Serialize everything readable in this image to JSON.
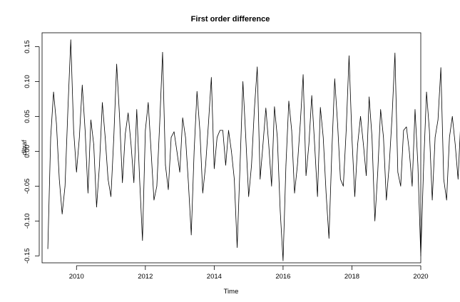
{
  "chart_data": {
    "type": "line",
    "title": "First order difference",
    "xlabel": "Time",
    "ylabel": "dltraf",
    "xlim": [
      2009.0,
      2020.0
    ],
    "ylim": [
      -0.16,
      0.17
    ],
    "x_ticks": [
      2010,
      2012,
      2014,
      2016,
      2018,
      2020
    ],
    "y_ticks": [
      -0.15,
      -0.1,
      -0.05,
      0.0,
      0.05,
      0.1,
      0.15
    ],
    "y_tick_labels": [
      "-0.15",
      "-0.10",
      "-0.05",
      "0.00",
      "0.05",
      "0.10",
      "0.15"
    ],
    "grid": false,
    "series": [
      {
        "x_start": 2009.1667,
        "x_step": 0.0833333,
        "line_color": "#000000",
        "values": [
          -0.14,
          0.02,
          0.085,
          0.04,
          -0.04,
          -0.09,
          -0.05,
          0.06,
          0.16,
          0.03,
          -0.03,
          0.02,
          0.095,
          0.03,
          -0.06,
          0.045,
          0.01,
          -0.08,
          -0.02,
          0.07,
          0.02,
          -0.04,
          -0.065,
          0.02,
          0.125,
          0.05,
          -0.045,
          0.025,
          0.055,
          0.01,
          -0.045,
          0.06,
          -0.04,
          -0.128,
          0.03,
          0.07,
          0.0,
          -0.07,
          -0.05,
          0.04,
          0.142,
          -0.02,
          -0.055,
          0.02,
          0.028,
          0.0,
          -0.03,
          0.048,
          0.02,
          -0.045,
          -0.12,
          0.0,
          0.086,
          0.03,
          -0.06,
          -0.02,
          0.04,
          0.106,
          -0.025,
          0.02,
          0.03,
          0.03,
          -0.02,
          0.03,
          0.0,
          -0.04,
          -0.138,
          -0.02,
          0.1,
          0.02,
          -0.065,
          -0.02,
          0.06,
          0.121,
          -0.04,
          0.01,
          0.062,
          0.01,
          -0.05,
          0.064,
          0.02,
          -0.085,
          -0.157,
          -0.02,
          0.072,
          0.03,
          -0.06,
          -0.02,
          0.04,
          0.11,
          -0.035,
          0.01,
          0.08,
          0.01,
          -0.065,
          0.063,
          0.02,
          -0.06,
          -0.125,
          0.0,
          0.104,
          0.04,
          -0.04,
          -0.05,
          0.03,
          0.137,
          0.02,
          -0.065,
          0.01,
          0.05,
          0.01,
          -0.035,
          0.078,
          0.02,
          -0.1,
          -0.03,
          0.06,
          0.02,
          -0.07,
          -0.02,
          0.05,
          0.141,
          -0.03,
          -0.05,
          0.03,
          0.035,
          0.0,
          -0.05,
          0.06,
          -0.02,
          -0.15,
          -0.02,
          0.085,
          0.03,
          -0.07,
          0.02,
          0.045,
          0.12,
          -0.04,
          -0.07,
          0.02,
          0.05,
          0.01,
          -0.04,
          0.05,
          0.02,
          -0.045,
          -0.118,
          0.0,
          0.09,
          0.04,
          -0.065,
          -0.02,
          0.05,
          0.128,
          -0.03,
          -0.055,
          0.02,
          0.086,
          0.02,
          -0.05,
          0.05,
          0.02,
          -0.06,
          -0.148,
          0.0,
          0.073,
          0.03,
          -0.045,
          -0.02,
          0.05,
          0.121,
          -0.04,
          -0.03,
          0.04,
          0.086,
          0.02,
          -0.058,
          0.055
        ]
      }
    ]
  }
}
